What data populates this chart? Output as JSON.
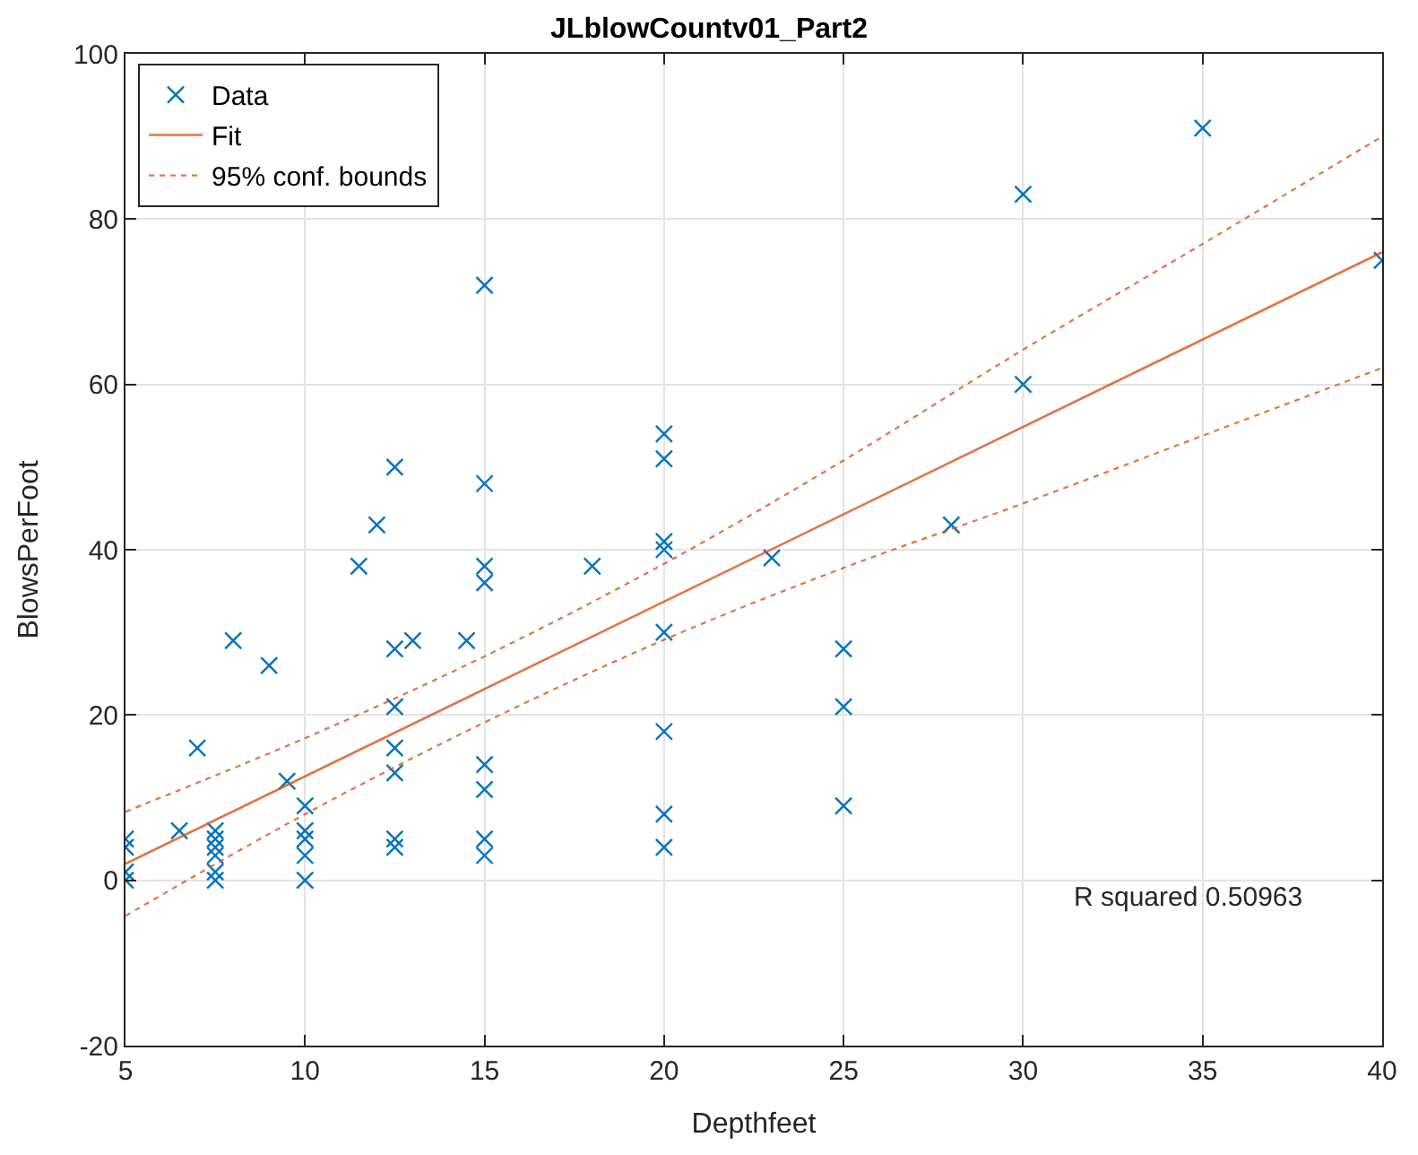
{
  "chart_data": {
    "type": "scatter",
    "title": "JLblowCountv01_Part2",
    "xlabel": "Depthfeet",
    "ylabel": "BlowsPerFoot",
    "xlim": [
      5,
      40
    ],
    "xticks": [
      5,
      10,
      15,
      20,
      25,
      30,
      35,
      40
    ],
    "ylim": [
      -20,
      100
    ],
    "yticks": [
      -20,
      0,
      20,
      40,
      60,
      80,
      100
    ],
    "grid": true,
    "legend": "top left",
    "marker": "cross",
    "series": [
      {
        "name": "Data",
        "color": "#0072bd",
        "x": [
          5,
          5,
          5,
          5,
          6.5,
          7,
          7.5,
          7.5,
          7.5,
          7.5,
          7.5,
          7.5,
          8,
          9,
          9.5,
          10,
          10,
          10,
          10,
          10,
          11.5,
          12,
          12.5,
          12.5,
          12.5,
          12.5,
          12.5,
          12.5,
          12.5,
          13,
          14.5,
          15,
          15,
          15,
          15,
          15,
          15,
          15,
          15,
          18,
          20,
          20,
          20,
          20,
          20,
          20,
          20,
          20,
          23,
          25,
          25,
          25,
          28,
          30,
          30,
          35,
          40
        ],
        "values": [
          5,
          4,
          1,
          0,
          6,
          16,
          6,
          5,
          4,
          3,
          1,
          0,
          29,
          26,
          12,
          9,
          6,
          5,
          3,
          0,
          38,
          43,
          50,
          28,
          21,
          16,
          13,
          5,
          4,
          29,
          29,
          72,
          48,
          38,
          36,
          14,
          11,
          5,
          3,
          38,
          54,
          51,
          41,
          40,
          30,
          18,
          8,
          4,
          39,
          28,
          21,
          9,
          43,
          83,
          60,
          91,
          75
        ]
      },
      {
        "name": "Fit",
        "type": "line",
        "color": "#d95319",
        "line_style": "solid",
        "marker": "none",
        "x": [
          5,
          40
        ],
        "values": [
          2,
          76
        ]
      },
      {
        "name": "95% conf. bounds",
        "type": "line",
        "color": "#d95319",
        "line_style": "dotted",
        "marker": "none",
        "x": [
          5,
          10,
          15,
          20,
          25,
          30,
          35,
          40
        ],
        "values": [
          8.3,
          17.2,
          27.1,
          38.3,
          50.8,
          64.2,
          77,
          90
        ]
      },
      {
        "type": "line",
        "color": "#d95319",
        "line_style": "dotted",
        "marker": "none",
        "x": [
          5,
          10,
          15,
          20,
          25,
          30,
          35,
          40
        ],
        "values": [
          -4.3,
          8,
          19.1,
          29.1,
          37.8,
          45.6,
          53.8,
          62
        ]
      }
    ],
    "annotations": [
      "R squared 0.50963"
    ]
  }
}
